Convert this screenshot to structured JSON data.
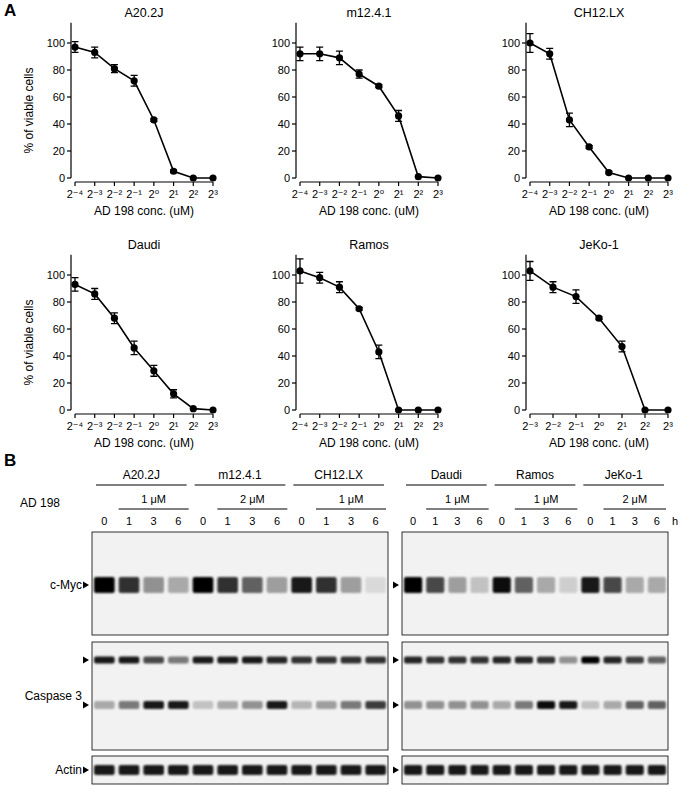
{
  "panel_labels": [
    "A",
    "B"
  ],
  "chart_data": [
    {
      "type": "line",
      "title": "A20.2J",
      "ylabel": "% of viable cells",
      "xlabel": "AD 198 conc. (uM)",
      "log": "x",
      "grid": false,
      "color": "#000000",
      "marker": "circle",
      "line_style": "solid",
      "x": [
        0.0625,
        0.125,
        0.25,
        0.5,
        1,
        2,
        4,
        8
      ],
      "values": [
        97,
        93,
        81,
        72,
        43,
        5,
        0,
        0
      ],
      "errors": [
        4,
        4,
        3,
        4,
        1,
        1,
        0,
        0
      ],
      "xlim": [
        0.0625,
        8
      ],
      "xticks": [
        {
          "value": 0.0625,
          "label": "2⁻⁴"
        },
        {
          "value": 0.125,
          "label": "2⁻³"
        },
        {
          "value": 0.25,
          "label": "2⁻²"
        },
        {
          "value": 0.5,
          "label": "2⁻¹"
        },
        {
          "value": 1,
          "label": "2⁰"
        },
        {
          "value": 2,
          "label": "2¹"
        },
        {
          "value": 4,
          "label": "2²"
        },
        {
          "value": 8,
          "label": "2³"
        }
      ],
      "ylim": [
        0,
        115
      ],
      "yticks": [
        0,
        20,
        40,
        60,
        80,
        100
      ]
    },
    {
      "type": "line",
      "title": "m12.4.1",
      "xlabel": "AD 198 conc. (uM)",
      "log": "x",
      "grid": false,
      "color": "#000000",
      "marker": "circle",
      "line_style": "solid",
      "x": [
        0.0625,
        0.125,
        0.25,
        0.5,
        1,
        2,
        4,
        8
      ],
      "values": [
        92,
        92,
        89,
        77,
        68,
        46,
        1,
        0
      ],
      "errors": [
        5,
        5,
        5,
        3,
        1,
        4,
        0,
        0
      ],
      "xlim": [
        0.0625,
        8
      ],
      "xticks": [
        {
          "value": 0.0625,
          "label": "2⁻⁴"
        },
        {
          "value": 0.125,
          "label": "2⁻³"
        },
        {
          "value": 0.25,
          "label": "2⁻²"
        },
        {
          "value": 0.5,
          "label": "2⁻¹"
        },
        {
          "value": 1,
          "label": "2⁰"
        },
        {
          "value": 2,
          "label": "2¹"
        },
        {
          "value": 4,
          "label": "2²"
        },
        {
          "value": 8,
          "label": "2³"
        }
      ],
      "ylim": [
        0,
        115
      ],
      "yticks": [
        0,
        20,
        40,
        60,
        80,
        100
      ]
    },
    {
      "type": "line",
      "title": "CH12.LX",
      "xlabel": "AD 198 conc. (uM)",
      "log": "x",
      "grid": false,
      "color": "#000000",
      "marker": "circle",
      "line_style": "solid",
      "x": [
        0.0625,
        0.125,
        0.25,
        0.5,
        1,
        2,
        4,
        8
      ],
      "values": [
        100,
        92,
        43,
        23,
        4,
        0,
        0,
        0
      ],
      "errors": [
        7,
        4,
        5,
        1,
        1,
        0,
        0,
        0
      ],
      "xlim": [
        0.0625,
        8
      ],
      "xticks": [
        {
          "value": 0.0625,
          "label": "2⁻⁴"
        },
        {
          "value": 0.125,
          "label": "2⁻³"
        },
        {
          "value": 0.25,
          "label": "2⁻²"
        },
        {
          "value": 0.5,
          "label": "2⁻¹"
        },
        {
          "value": 1,
          "label": "2⁰"
        },
        {
          "value": 2,
          "label": "2¹"
        },
        {
          "value": 4,
          "label": "2²"
        },
        {
          "value": 8,
          "label": "2³"
        }
      ],
      "ylim": [
        0,
        115
      ],
      "yticks": [
        0,
        20,
        40,
        60,
        80,
        100
      ]
    },
    {
      "type": "line",
      "title": "Daudi",
      "ylabel": "% of viable cells",
      "xlabel": "AD 198 conc. (uM)",
      "log": "x",
      "grid": false,
      "color": "#000000",
      "marker": "circle",
      "line_style": "solid",
      "x": [
        0.0625,
        0.125,
        0.25,
        0.5,
        1,
        2,
        4,
        8
      ],
      "values": [
        93,
        86,
        68,
        46,
        29,
        12,
        1,
        0
      ],
      "errors": [
        5,
        4,
        4,
        5,
        4,
        3,
        0,
        0
      ],
      "xlim": [
        0.0625,
        8
      ],
      "xticks": [
        {
          "value": 0.0625,
          "label": "2⁻⁴"
        },
        {
          "value": 0.125,
          "label": "2⁻³"
        },
        {
          "value": 0.25,
          "label": "2⁻²"
        },
        {
          "value": 0.5,
          "label": "2⁻¹"
        },
        {
          "value": 1,
          "label": "2⁰"
        },
        {
          "value": 2,
          "label": "2¹"
        },
        {
          "value": 4,
          "label": "2²"
        },
        {
          "value": 8,
          "label": "2³"
        }
      ],
      "ylim": [
        0,
        115
      ],
      "yticks": [
        0,
        20,
        40,
        60,
        80,
        100
      ]
    },
    {
      "type": "line",
      "title": "Ramos",
      "xlabel": "AD 198 conc. (uM)",
      "log": "x",
      "grid": false,
      "color": "#000000",
      "marker": "circle",
      "line_style": "solid",
      "x": [
        0.0625,
        0.125,
        0.25,
        0.5,
        1,
        2,
        4,
        8
      ],
      "values": [
        103,
        98,
        91,
        75,
        43,
        0,
        0,
        0
      ],
      "errors": [
        9,
        4,
        4,
        1,
        5,
        0,
        0,
        0
      ],
      "xlim": [
        0.0625,
        8
      ],
      "xticks": [
        {
          "value": 0.0625,
          "label": "2⁻⁴"
        },
        {
          "value": 0.125,
          "label": "2⁻³"
        },
        {
          "value": 0.25,
          "label": "2⁻²"
        },
        {
          "value": 0.5,
          "label": "2⁻¹"
        },
        {
          "value": 1,
          "label": "2⁰"
        },
        {
          "value": 2,
          "label": "2¹"
        },
        {
          "value": 4,
          "label": "2²"
        },
        {
          "value": 8,
          "label": "2³"
        }
      ],
      "ylim": [
        0,
        115
      ],
      "yticks": [
        0,
        20,
        40,
        60,
        80,
        100
      ]
    },
    {
      "type": "line",
      "title": "JeKo-1",
      "xlabel": "AD 198 conc. (uM)",
      "log": "x",
      "grid": false,
      "color": "#000000",
      "marker": "circle",
      "line_style": "solid",
      "x": [
        0.125,
        0.25,
        0.5,
        1,
        2,
        4,
        8
      ],
      "values": [
        103,
        91,
        84,
        68,
        47,
        0,
        0
      ],
      "errors": [
        7,
        4,
        5,
        1,
        4,
        0,
        0
      ],
      "xlim": [
        0.125,
        8
      ],
      "xticks": [
        {
          "value": 0.125,
          "label": "2⁻³"
        },
        {
          "value": 0.25,
          "label": "2⁻²"
        },
        {
          "value": 0.5,
          "label": "2⁻¹"
        },
        {
          "value": 1,
          "label": "2⁰"
        },
        {
          "value": 2,
          "label": "2¹"
        },
        {
          "value": 4,
          "label": "2²"
        },
        {
          "value": 8,
          "label": "2³"
        }
      ],
      "ylim": [
        0,
        115
      ],
      "yticks": [
        0,
        20,
        40,
        60,
        80,
        100
      ]
    }
  ],
  "blot": {
    "treatment_label": "AD 198",
    "time_unit": "h",
    "row_labels": [
      "c-Myc",
      "Caspase 3",
      "Actin"
    ],
    "groups": [
      {
        "cell_line": "A20.2J",
        "dose": "1 μM",
        "times": [
          0,
          1,
          3,
          6
        ],
        "myc": [
          1,
          0.8,
          0.4,
          0.3
        ],
        "caspase_pro": [
          0.9,
          0.9,
          0.7,
          0.5
        ],
        "caspase_cleaved": [
          0.3,
          0.5,
          0.9,
          0.9
        ],
        "actin": [
          0.9,
          0.9,
          0.9,
          0.9
        ]
      },
      {
        "cell_line": "m12.4.1",
        "dose": "2 μM",
        "times": [
          0,
          1,
          3,
          6
        ],
        "myc": [
          1,
          0.8,
          0.6,
          0.35
        ],
        "caspase_pro": [
          0.9,
          0.9,
          0.9,
          0.85
        ],
        "caspase_cleaved": [
          0.2,
          0.3,
          0.4,
          0.9
        ],
        "actin": [
          0.9,
          0.9,
          0.9,
          0.9
        ]
      },
      {
        "cell_line": "CH12.LX",
        "dose": "1 μM",
        "times": [
          0,
          1,
          3,
          6
        ],
        "myc": [
          0.9,
          0.8,
          0.35,
          0.1
        ],
        "caspase_pro": [
          0.8,
          0.8,
          0.8,
          0.8
        ],
        "caspase_cleaved": [
          0.25,
          0.35,
          0.5,
          0.75
        ],
        "actin": [
          0.9,
          0.9,
          0.9,
          0.9
        ]
      },
      {
        "cell_line": "Daudi",
        "dose": "1 μM",
        "times": [
          0,
          1,
          3,
          6
        ],
        "myc": [
          1,
          0.7,
          0.35,
          0.2
        ],
        "caspase_pro": [
          0.85,
          0.8,
          0.8,
          0.8
        ],
        "caspase_cleaved": [
          0.4,
          0.4,
          0.4,
          0.4
        ],
        "actin": [
          0.9,
          0.9,
          0.9,
          0.9
        ]
      },
      {
        "cell_line": "Ramos",
        "dose": "1 μM",
        "times": [
          0,
          1,
          3,
          6
        ],
        "myc": [
          0.95,
          0.6,
          0.3,
          0.15
        ],
        "caspase_pro": [
          0.85,
          0.85,
          0.8,
          0.4
        ],
        "caspase_cleaved": [
          0.3,
          0.5,
          0.95,
          0.9
        ],
        "actin": [
          0.9,
          0.9,
          0.9,
          0.9
        ]
      },
      {
        "cell_line": "JeKo-1",
        "dose": "2 μM",
        "times": [
          0,
          1,
          3,
          6
        ],
        "myc": [
          0.9,
          0.7,
          0.3,
          0.3
        ],
        "caspase_pro": [
          1,
          0.85,
          0.75,
          0.6
        ],
        "caspase_cleaved": [
          0.2,
          0.3,
          0.6,
          0.6
        ],
        "actin": [
          0.9,
          0.9,
          0.9,
          0.9
        ]
      }
    ]
  }
}
